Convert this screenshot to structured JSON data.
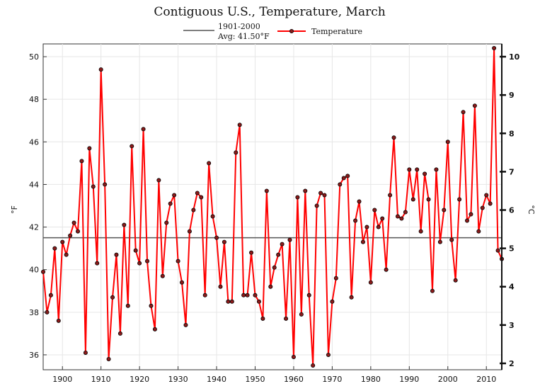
{
  "chart_data": {
    "type": "line",
    "title": "Contiguous U.S., Temperature, March",
    "ylabel": "°F",
    "ylabel_right": "°C",
    "xlim": [
      1895,
      2014
    ],
    "ylim": [
      35.3,
      50.6
    ],
    "grid": true,
    "legend_position": "top-center",
    "x_ticks": [
      "1900",
      "1910",
      "1920",
      "1930",
      "1940",
      "1950",
      "1960",
      "1970",
      "1980",
      "1990",
      "2000",
      "2010"
    ],
    "y_ticks": [
      "36",
      "38",
      "40",
      "42",
      "44",
      "46",
      "48",
      "50"
    ],
    "y_ticks_right": [
      "2",
      "3",
      "4",
      "5",
      "6",
      "7",
      "8",
      "9",
      "10"
    ],
    "average": {
      "label_line1": "1901-2000",
      "label_line2": "Avg: 41.50°F",
      "value": 41.5,
      "color": "#555555"
    },
    "series": [
      {
        "name": "Temperature",
        "color": "#ff0000",
        "x": [
          1895,
          1896,
          1897,
          1898,
          1899,
          1900,
          1901,
          1902,
          1903,
          1904,
          1905,
          1906,
          1907,
          1908,
          1909,
          1910,
          1911,
          1912,
          1913,
          1914,
          1915,
          1916,
          1917,
          1918,
          1919,
          1920,
          1921,
          1922,
          1923,
          1924,
          1925,
          1926,
          1927,
          1928,
          1929,
          1930,
          1931,
          1932,
          1933,
          1934,
          1935,
          1936,
          1937,
          1938,
          1939,
          1940,
          1941,
          1942,
          1943,
          1944,
          1945,
          1946,
          1947,
          1948,
          1949,
          1950,
          1951,
          1952,
          1953,
          1954,
          1955,
          1956,
          1957,
          1958,
          1959,
          1960,
          1961,
          1962,
          1963,
          1964,
          1965,
          1966,
          1967,
          1968,
          1969,
          1970,
          1971,
          1972,
          1973,
          1974,
          1975,
          1976,
          1977,
          1978,
          1979,
          1980,
          1981,
          1982,
          1983,
          1984,
          1985,
          1986,
          1987,
          1988,
          1989,
          1990,
          1991,
          1992,
          1993,
          1994,
          1995,
          1996,
          1997,
          1998,
          1999,
          2000,
          2001,
          2002,
          2003,
          2004,
          2005,
          2006,
          2007,
          2008,
          2009,
          2010,
          2011,
          2012,
          2013,
          2014
        ],
        "values": [
          39.9,
          38.0,
          38.8,
          41.0,
          37.6,
          41.3,
          40.7,
          41.6,
          42.2,
          41.8,
          45.1,
          36.1,
          45.7,
          43.9,
          40.3,
          49.4,
          44.0,
          35.8,
          38.7,
          40.7,
          37.0,
          42.1,
          38.3,
          45.8,
          40.9,
          40.3,
          46.6,
          40.4,
          38.3,
          37.2,
          44.2,
          39.7,
          42.2,
          43.1,
          43.5,
          40.4,
          39.4,
          37.4,
          41.8,
          42.8,
          43.6,
          43.4,
          38.8,
          45.0,
          42.5,
          41.5,
          39.2,
          41.3,
          38.5,
          38.5,
          45.5,
          46.8,
          38.8,
          38.8,
          40.8,
          38.8,
          38.5,
          37.7,
          43.7,
          39.2,
          40.1,
          40.7,
          41.2,
          37.7,
          41.4,
          35.9,
          43.4,
          37.9,
          43.7,
          38.8,
          35.5,
          43.0,
          43.6,
          43.5,
          36.0,
          38.5,
          39.6,
          44.0,
          44.3,
          44.4,
          38.7,
          42.3,
          43.2,
          41.3,
          42.0,
          39.4,
          42.8,
          42.0,
          42.4,
          40.0,
          43.5,
          46.2,
          42.5,
          42.4,
          42.7,
          44.7,
          43.3,
          44.7,
          41.8,
          44.5,
          43.3,
          39.0,
          44.7,
          41.3,
          42.8,
          46.0,
          41.4,
          39.5,
          43.3,
          47.4,
          42.3,
          42.6,
          47.7,
          41.8,
          42.9,
          43.5,
          43.1,
          50.4,
          40.9,
          40.5
        ]
      }
    ]
  }
}
